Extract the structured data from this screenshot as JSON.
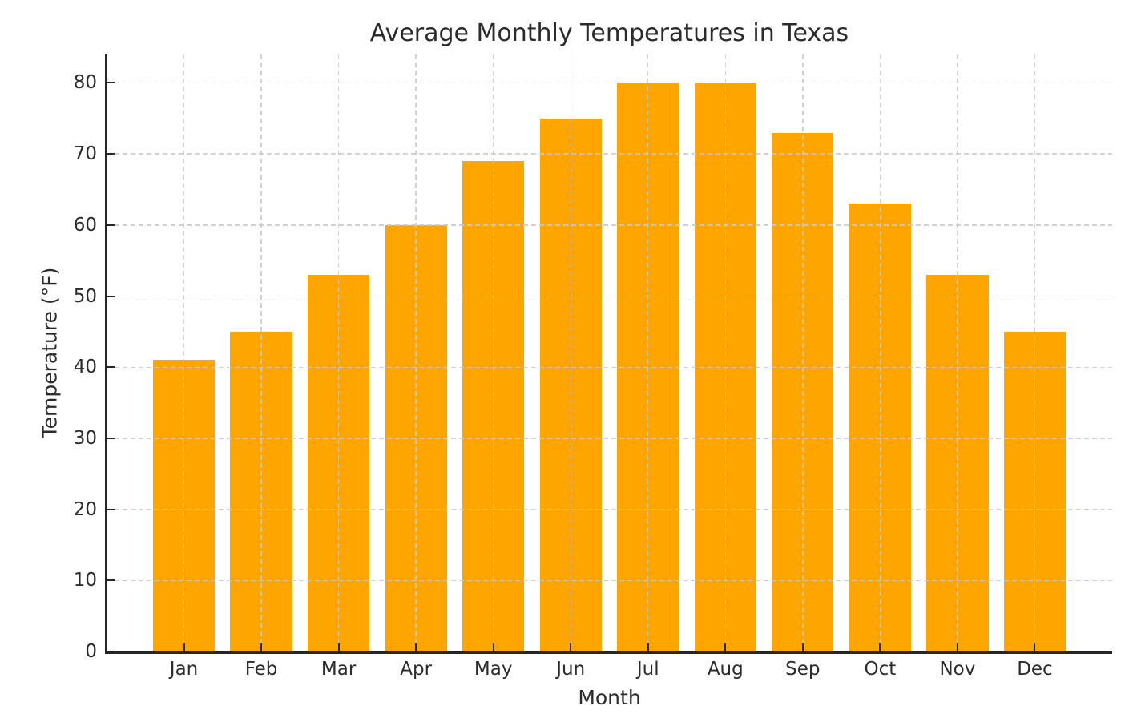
{
  "chart_data": {
    "type": "bar",
    "title": "Average Monthly Temperatures in Texas",
    "xlabel": "Month",
    "ylabel": "Temperature (°F)",
    "categories": [
      "Jan",
      "Feb",
      "Mar",
      "Apr",
      "May",
      "Jun",
      "Jul",
      "Aug",
      "Sep",
      "Oct",
      "Nov",
      "Dec"
    ],
    "values": [
      41,
      45,
      53,
      60,
      69,
      75,
      80,
      80,
      73,
      63,
      53,
      45
    ],
    "yticks": [
      0,
      10,
      20,
      30,
      40,
      50,
      60,
      70,
      80
    ],
    "ylim": [
      0,
      84
    ],
    "bar_color": "#FFA500",
    "grid": {
      "style": "dashed",
      "axes": "both",
      "drawn_above_bars": true,
      "color": "#c9c9c9"
    },
    "legend_position": "none",
    "background_color": "#ffffff",
    "spine_color": "#262626",
    "text_color": "#2b2b2b"
  }
}
